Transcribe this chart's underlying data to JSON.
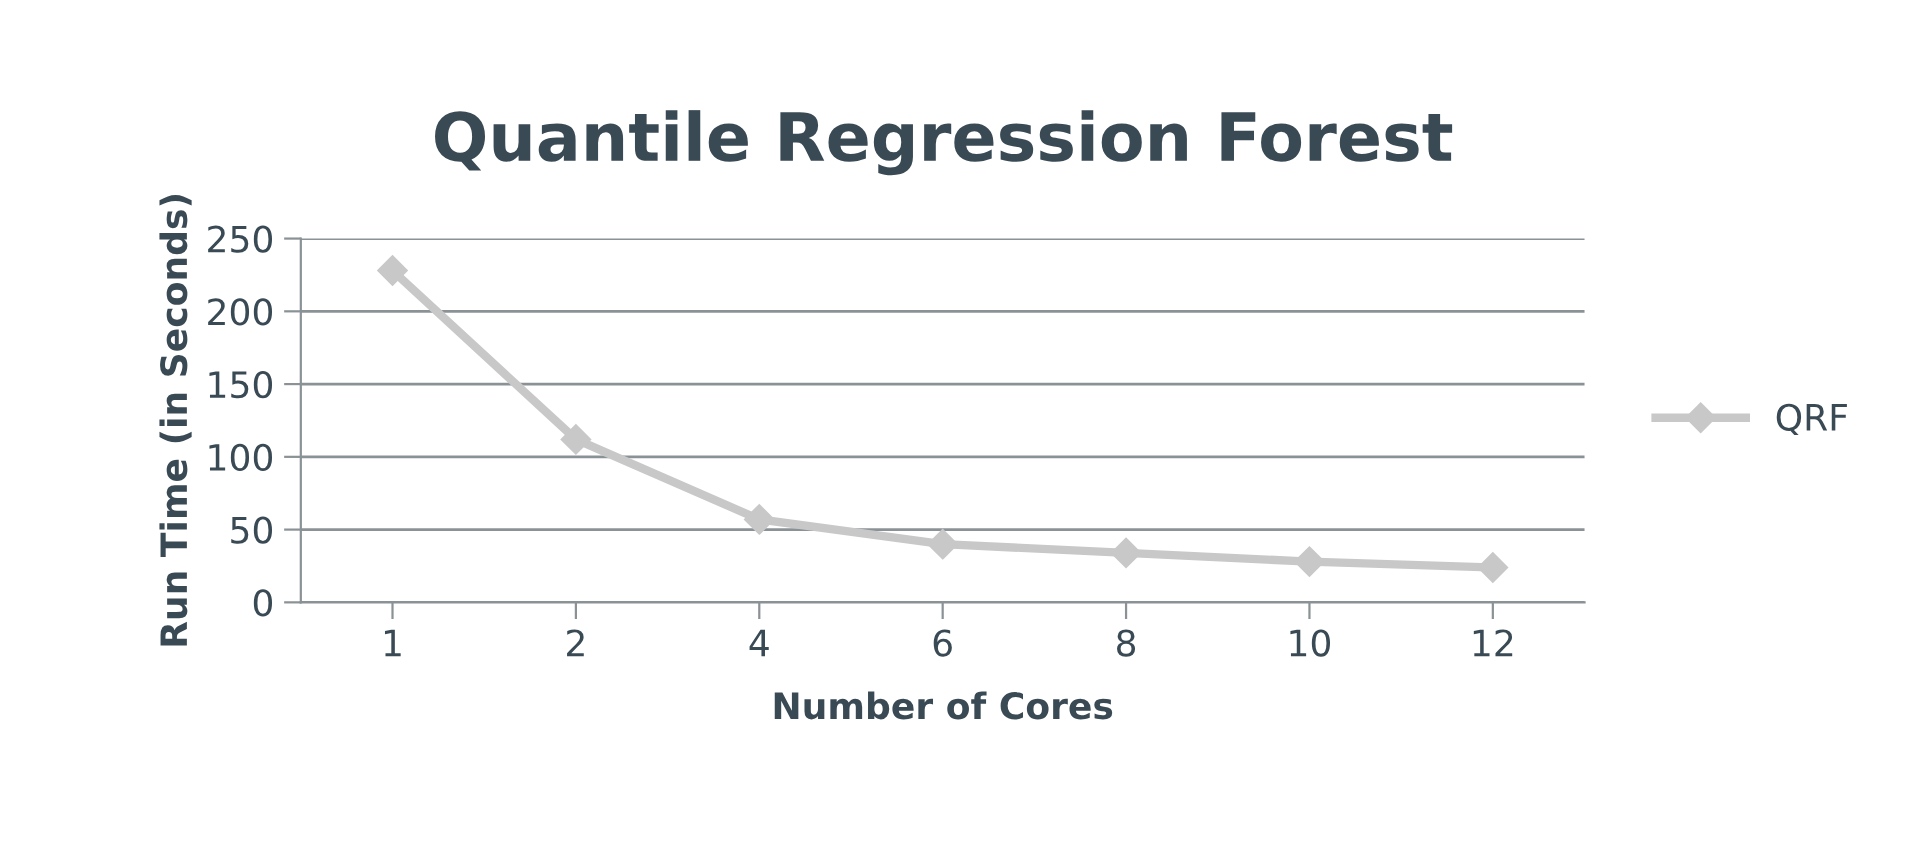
{
  "chart_data": {
    "type": "line",
    "title": "Quantile Regression Forest",
    "xlabel": "Number of Cores",
    "ylabel": "Run Time (in Seconds)",
    "categories": [
      "1",
      "2",
      "4",
      "6",
      "8",
      "10",
      "12"
    ],
    "series": [
      {
        "name": "QRF",
        "color": "#c8c8c8",
        "values": [
          228,
          112,
          57,
          40,
          34,
          28,
          24
        ]
      }
    ],
    "ylim": [
      0,
      250
    ],
    "yticks": [
      0,
      50,
      100,
      150,
      200,
      250
    ],
    "grid": "y",
    "legend": "right",
    "marker": "diamond",
    "line_style": "solid"
  }
}
